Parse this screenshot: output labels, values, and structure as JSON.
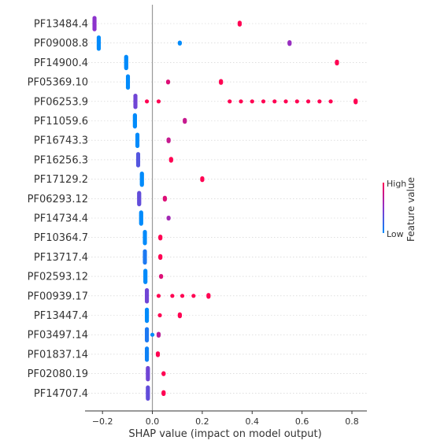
{
  "chart_data": {
    "type": "scatter",
    "xlabel": "SHAP value (impact on model output)",
    "xlim": [
      -0.27,
      0.86
    ],
    "xticks": [
      -0.2,
      0.0,
      0.2,
      0.4,
      0.6,
      0.8
    ],
    "xtick_labels": [
      "−0.2",
      "0.0",
      "0.2",
      "0.4",
      "0.6",
      "0.8"
    ],
    "grid": false,
    "colorbar": {
      "label": "Feature value",
      "high_label": "High",
      "low_label": "Low",
      "high_color": "#ff0052",
      "low_color": "#008bfb",
      "mid_color": "#8c33cc"
    },
    "features": [
      {
        "name": "PF13484.4",
        "points": [
          {
            "x": -0.232,
            "v": 0.5,
            "n": 14
          },
          {
            "x": 0.35,
            "v": 1,
            "n": 3
          }
        ]
      },
      {
        "name": "PF09008.8",
        "points": [
          {
            "x": -0.215,
            "v": 0,
            "n": 14
          },
          {
            "x": 0.11,
            "v": 0,
            "n": 2
          },
          {
            "x": 0.55,
            "v": 0.55,
            "n": 3
          }
        ]
      },
      {
        "name": "PF14900.4",
        "points": [
          {
            "x": -0.105,
            "v": 0,
            "n": 14
          },
          {
            "x": 0.74,
            "v": 1,
            "n": 3
          }
        ]
      },
      {
        "name": "PF05369.10",
        "points": [
          {
            "x": -0.098,
            "v": 0,
            "n": 14
          },
          {
            "x": 0.063,
            "v": 0.85,
            "n": 2
          },
          {
            "x": 0.275,
            "v": 1,
            "n": 3
          }
        ]
      },
      {
        "name": "PF06253.9",
        "points": [
          {
            "x": -0.068,
            "v": 0.4,
            "n": 14
          },
          {
            "x": -0.022,
            "v": 1,
            "n": 1
          },
          {
            "x": 0.025,
            "v": 1,
            "n": 1
          },
          {
            "x": 0.31,
            "v": 1,
            "n": 1
          },
          {
            "x": 0.355,
            "v": 1,
            "n": 1
          },
          {
            "x": 0.4,
            "v": 1,
            "n": 1
          },
          {
            "x": 0.445,
            "v": 1,
            "n": 1
          },
          {
            "x": 0.49,
            "v": 1,
            "n": 1
          },
          {
            "x": 0.535,
            "v": 1,
            "n": 1
          },
          {
            "x": 0.58,
            "v": 1,
            "n": 1
          },
          {
            "x": 0.625,
            "v": 1,
            "n": 1
          },
          {
            "x": 0.67,
            "v": 1,
            "n": 1
          },
          {
            "x": 0.715,
            "v": 1,
            "n": 1
          },
          {
            "x": 0.815,
            "v": 1,
            "n": 3
          }
        ]
      },
      {
        "name": "PF11059.6",
        "points": [
          {
            "x": -0.07,
            "v": 0,
            "n": 14
          },
          {
            "x": 0.13,
            "v": 0.75,
            "n": 3
          }
        ]
      },
      {
        "name": "PF16743.3",
        "points": [
          {
            "x": -0.06,
            "v": 0,
            "n": 14
          },
          {
            "x": 0.065,
            "v": 0.75,
            "n": 3
          }
        ]
      },
      {
        "name": "PF16256.3",
        "points": [
          {
            "x": -0.057,
            "v": 0.3,
            "n": 14
          },
          {
            "x": 0.075,
            "v": 1,
            "n": 3
          }
        ]
      },
      {
        "name": "PF17129.2",
        "points": [
          {
            "x": -0.042,
            "v": 0,
            "n": 14
          },
          {
            "x": 0.2,
            "v": 1,
            "n": 3
          }
        ]
      },
      {
        "name": "PF06293.12",
        "points": [
          {
            "x": -0.053,
            "v": 0.35,
            "n": 14
          },
          {
            "x": 0.05,
            "v": 0.85,
            "n": 3
          }
        ]
      },
      {
        "name": "PF14734.4",
        "points": [
          {
            "x": -0.045,
            "v": 0,
            "n": 14
          },
          {
            "x": 0.065,
            "v": 0.6,
            "n": 2
          }
        ]
      },
      {
        "name": "PF10364.7",
        "points": [
          {
            "x": -0.03,
            "v": 0,
            "n": 14
          },
          {
            "x": 0.032,
            "v": 1,
            "n": 3
          }
        ]
      },
      {
        "name": "PF13717.4",
        "points": [
          {
            "x": -0.03,
            "v": 0.1,
            "n": 14
          },
          {
            "x": 0.032,
            "v": 1,
            "n": 3
          }
        ]
      },
      {
        "name": "PF02593.12",
        "points": [
          {
            "x": -0.028,
            "v": 0,
            "n": 14
          },
          {
            "x": 0.035,
            "v": 0.85,
            "n": 2
          }
        ]
      },
      {
        "name": "PF00939.17",
        "points": [
          {
            "x": -0.022,
            "v": 0.4,
            "n": 14
          },
          {
            "x": 0.025,
            "v": 1,
            "n": 1
          },
          {
            "x": 0.08,
            "v": 1,
            "n": 1
          },
          {
            "x": 0.12,
            "v": 1,
            "n": 1
          },
          {
            "x": 0.165,
            "v": 1,
            "n": 1
          },
          {
            "x": 0.225,
            "v": 1,
            "n": 3
          }
        ]
      },
      {
        "name": "PF13447.4",
        "points": [
          {
            "x": -0.022,
            "v": 0,
            "n": 14
          },
          {
            "x": 0.03,
            "v": 1,
            "n": 1
          },
          {
            "x": 0.11,
            "v": 1,
            "n": 3
          }
        ]
      },
      {
        "name": "PF03497.14",
        "points": [
          {
            "x": -0.022,
            "v": 0.1,
            "n": 14
          },
          {
            "x": 0.0,
            "v": 0,
            "n": 1
          },
          {
            "x": 0.025,
            "v": 0.7,
            "n": 3
          }
        ]
      },
      {
        "name": "PF01837.14",
        "points": [
          {
            "x": -0.022,
            "v": 0.05,
            "n": 14
          },
          {
            "x": 0.022,
            "v": 1,
            "n": 3
          }
        ]
      },
      {
        "name": "PF02080.19",
        "points": [
          {
            "x": -0.018,
            "v": 0.4,
            "n": 14
          },
          {
            "x": 0.045,
            "v": 1,
            "n": 2
          }
        ]
      },
      {
        "name": "PF14707.4",
        "points": [
          {
            "x": -0.018,
            "v": 0.35,
            "n": 14
          },
          {
            "x": 0.045,
            "v": 1,
            "n": 3
          }
        ]
      }
    ]
  }
}
